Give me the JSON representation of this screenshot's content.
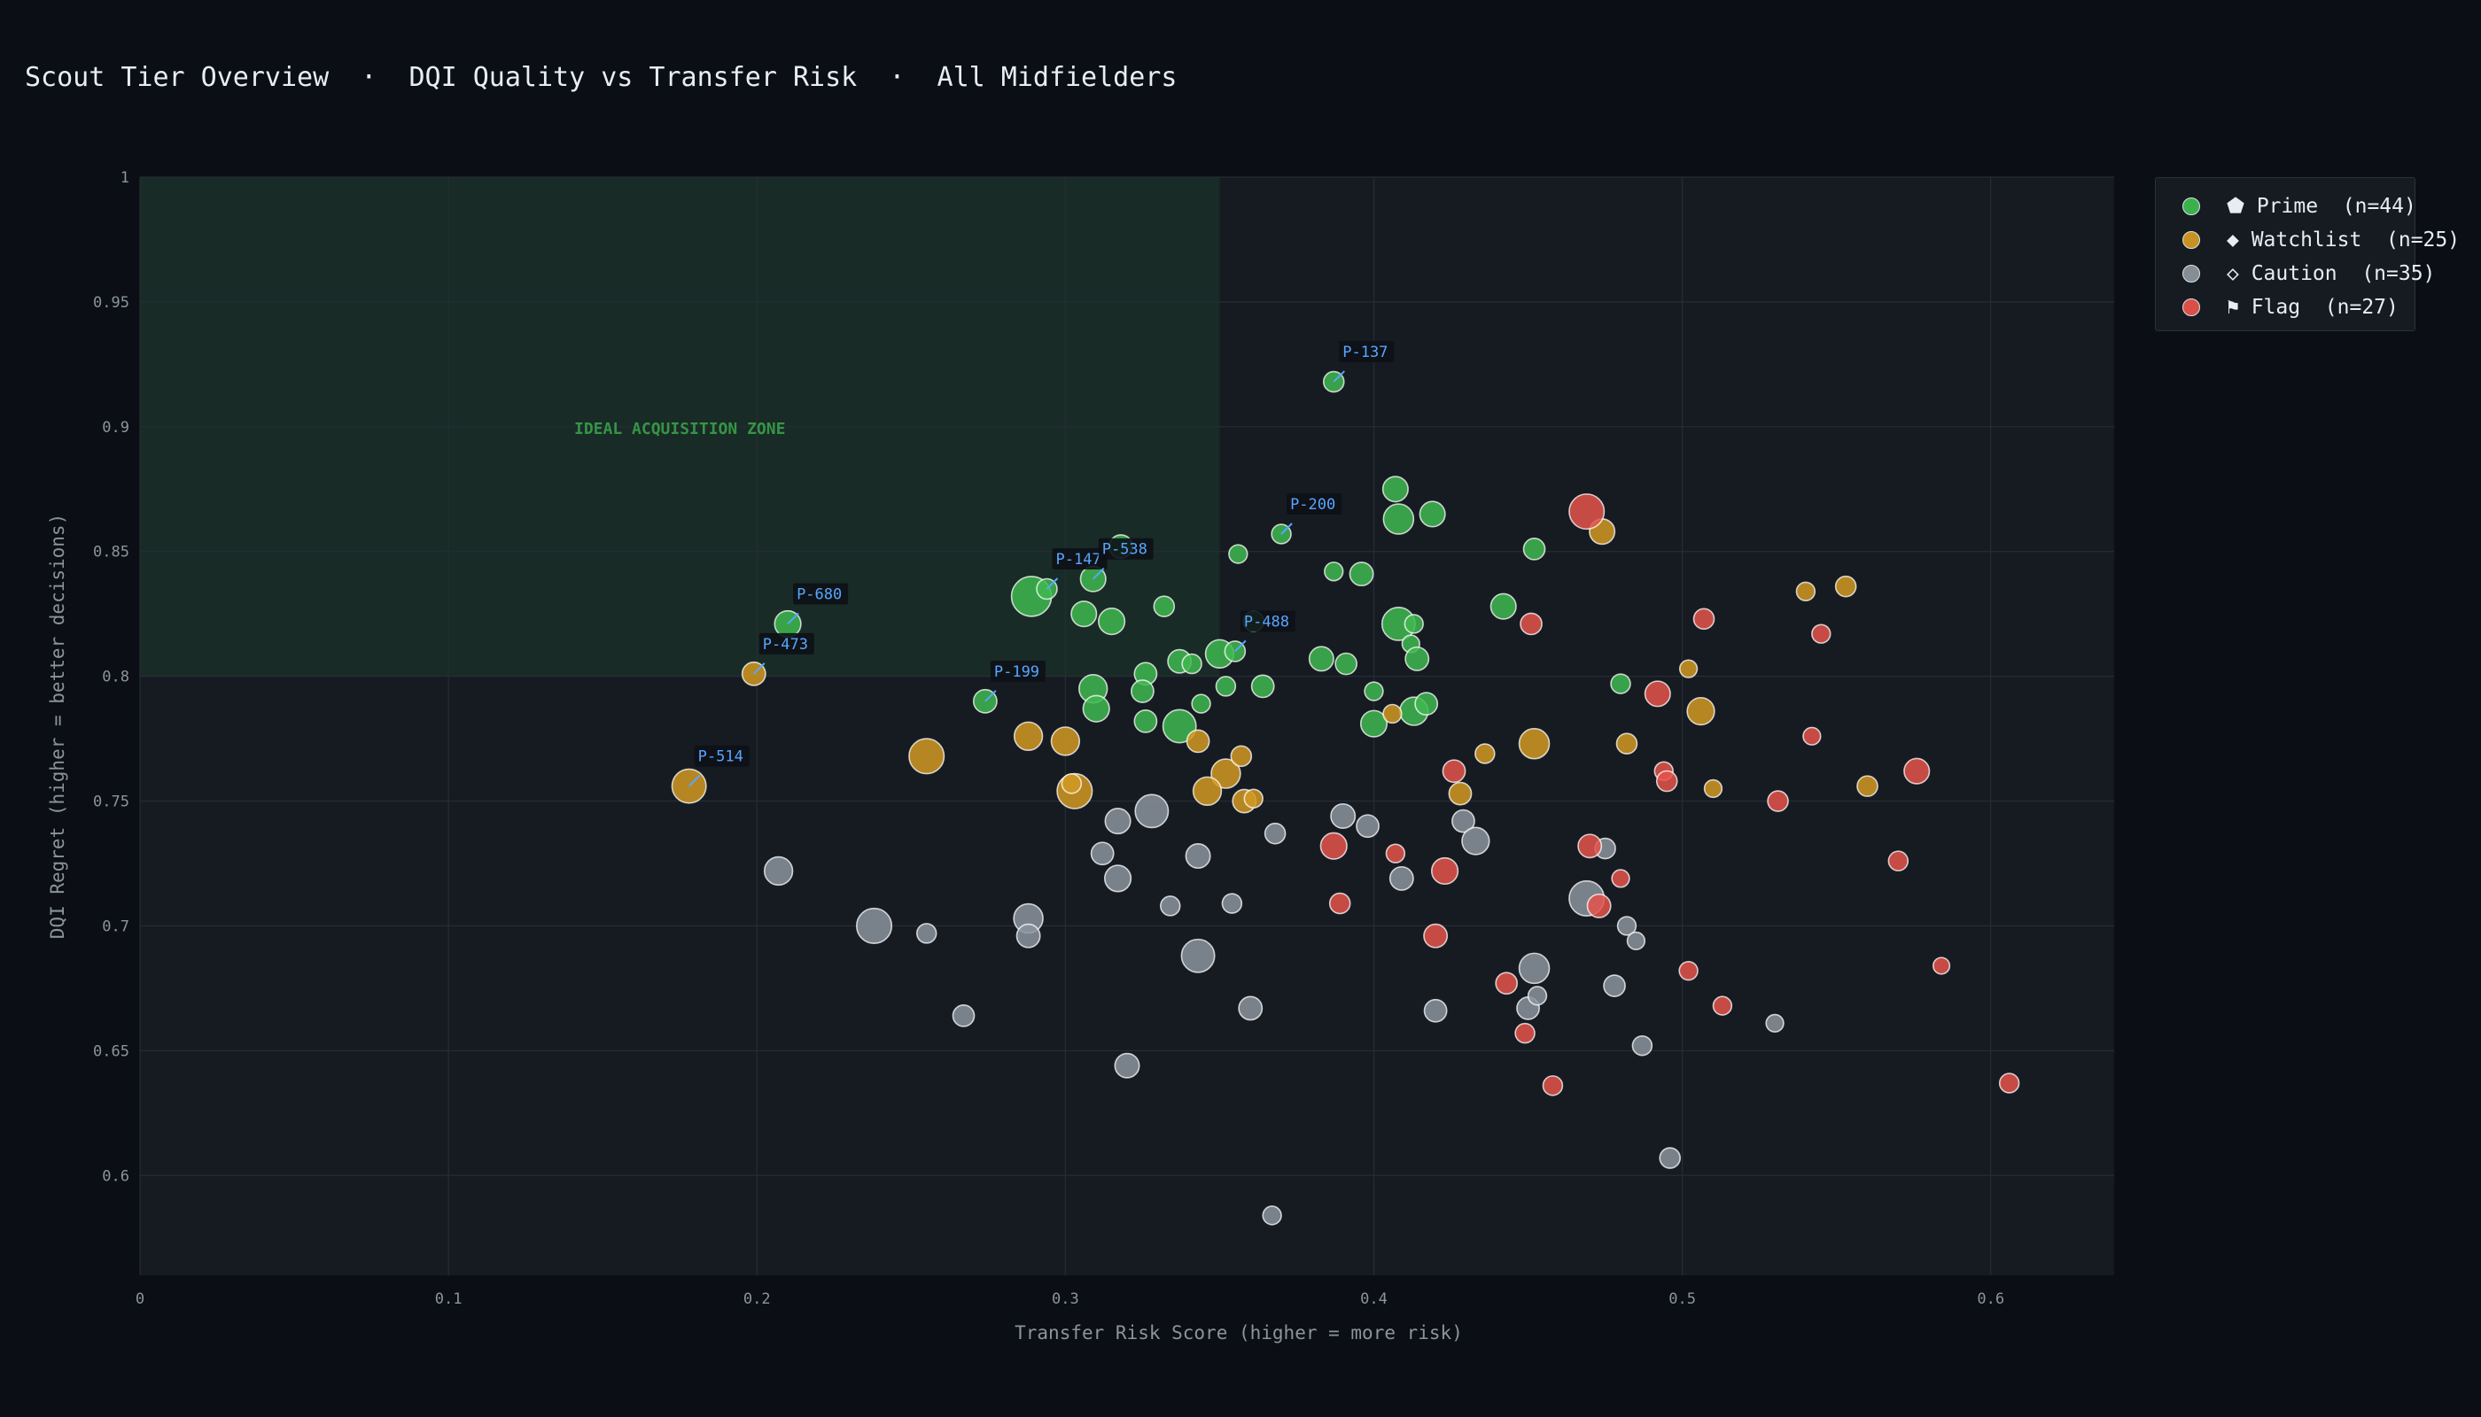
{
  "chart_data": {
    "type": "scatter",
    "title": "Scout Tier Overview  ·  DQI Quality vs Transfer Risk  ·  All Midfielders",
    "xlabel": "Transfer Risk Score  (higher = more risk)",
    "ylabel": "DQI Regret  (higher = better decisions)",
    "xlim": [
      0,
      0.64
    ],
    "ylim": [
      0.56,
      1.0
    ],
    "x_ticks": [
      "0",
      "0.1",
      "0.2",
      "0.3",
      "0.4",
      "0.5",
      "0.6"
    ],
    "y_ticks": [
      "0.6",
      "0.65",
      "0.7",
      "0.75",
      "0.8",
      "0.85",
      "0.9",
      "0.95",
      "1"
    ],
    "grid": true,
    "zone": {
      "label": "IDEAL ACQUISITION ZONE",
      "x": [
        0,
        0.35
      ],
      "y": [
        0.8,
        1.0
      ]
    },
    "legend_position": "outside-right",
    "series": [
      {
        "name": "⬟ Prime  (n=44)",
        "color": "#3fb950",
        "points": [
          [
            0.387,
            0.918,
            1
          ],
          [
            0.407,
            0.875,
            1.5
          ],
          [
            0.408,
            0.863,
            2
          ],
          [
            0.419,
            0.865,
            1.5
          ],
          [
            0.356,
            0.849,
            0.8
          ],
          [
            0.387,
            0.842,
            0.8
          ],
          [
            0.396,
            0.841,
            1.3
          ],
          [
            0.452,
            0.851,
            1.1
          ],
          [
            0.442,
            0.828,
            1.5
          ],
          [
            0.289,
            0.832,
            3
          ],
          [
            0.294,
            0.835,
            1
          ],
          [
            0.309,
            0.839,
            1.5
          ],
          [
            0.318,
            0.852,
            1.3
          ],
          [
            0.306,
            0.825,
            1.5
          ],
          [
            0.315,
            0.822,
            1.6
          ],
          [
            0.332,
            0.828,
            1
          ],
          [
            0.361,
            0.822,
            1
          ],
          [
            0.21,
            0.821,
            1.6
          ],
          [
            0.274,
            0.79,
            1.3
          ],
          [
            0.408,
            0.821,
            2.3
          ],
          [
            0.413,
            0.821,
            0.8
          ],
          [
            0.412,
            0.813,
            0.7
          ],
          [
            0.414,
            0.807,
            1.3
          ],
          [
            0.383,
            0.807,
            1.4
          ],
          [
            0.391,
            0.805,
            1.1
          ],
          [
            0.35,
            0.809,
            1.8
          ],
          [
            0.337,
            0.806,
            1.3
          ],
          [
            0.341,
            0.805,
            0.9
          ],
          [
            0.326,
            0.801,
            1.2
          ],
          [
            0.309,
            0.795,
            1.8
          ],
          [
            0.31,
            0.787,
            1.6
          ],
          [
            0.325,
            0.794,
            1.2
          ],
          [
            0.352,
            0.796,
            0.9
          ],
          [
            0.364,
            0.796,
            1.2
          ],
          [
            0.344,
            0.789,
            0.8
          ],
          [
            0.326,
            0.782,
            1.2
          ],
          [
            0.337,
            0.78,
            2.3
          ],
          [
            0.4,
            0.794,
            0.8
          ],
          [
            0.4,
            0.781,
            1.6
          ],
          [
            0.413,
            0.786,
            1.8
          ],
          [
            0.417,
            0.789,
            1.2
          ],
          [
            0.48,
            0.797,
            0.9
          ],
          [
            0.37,
            0.857,
            0.9
          ],
          [
            0.355,
            0.81,
            1
          ]
        ]
      },
      {
        "name": "◆ Watchlist  (n=25)",
        "color": "#d29922",
        "points": [
          [
            0.474,
            0.858,
            1.5
          ],
          [
            0.54,
            0.834,
            0.8
          ],
          [
            0.553,
            0.836,
            1
          ],
          [
            0.199,
            0.801,
            1.3
          ],
          [
            0.178,
            0.756,
            2.4
          ],
          [
            0.255,
            0.768,
            2.5
          ],
          [
            0.288,
            0.776,
            1.8
          ],
          [
            0.3,
            0.774,
            1.8
          ],
          [
            0.303,
            0.754,
            2.5
          ],
          [
            0.302,
            0.757,
            0.9
          ],
          [
            0.343,
            0.774,
            1.2
          ],
          [
            0.352,
            0.761,
            1.9
          ],
          [
            0.357,
            0.768,
            1
          ],
          [
            0.346,
            0.754,
            1.8
          ],
          [
            0.358,
            0.75,
            1.3
          ],
          [
            0.361,
            0.751,
            0.8
          ],
          [
            0.406,
            0.785,
            0.8
          ],
          [
            0.436,
            0.769,
            0.9
          ],
          [
            0.428,
            0.753,
            1.2
          ],
          [
            0.452,
            0.773,
            2
          ],
          [
            0.482,
            0.773,
            1
          ],
          [
            0.502,
            0.803,
            0.7
          ],
          [
            0.506,
            0.786,
            1.7
          ],
          [
            0.51,
            0.755,
            0.7
          ],
          [
            0.56,
            0.756,
            1
          ]
        ]
      },
      {
        "name": "◇ Caution  (n=35)",
        "color": "#8b949e",
        "points": [
          [
            0.207,
            0.722,
            1.8
          ],
          [
            0.238,
            0.7,
            2.5
          ],
          [
            0.255,
            0.697,
            0.9
          ],
          [
            0.267,
            0.664,
            1.1
          ],
          [
            0.288,
            0.703,
            1.9
          ],
          [
            0.288,
            0.696,
            1.3
          ],
          [
            0.317,
            0.742,
            1.5
          ],
          [
            0.328,
            0.746,
            2.3
          ],
          [
            0.312,
            0.729,
            1.2
          ],
          [
            0.317,
            0.719,
            1.6
          ],
          [
            0.343,
            0.728,
            1.4
          ],
          [
            0.334,
            0.708,
            0.9
          ],
          [
            0.354,
            0.709,
            0.9
          ],
          [
            0.343,
            0.688,
            2.3
          ],
          [
            0.368,
            0.737,
            1
          ],
          [
            0.39,
            0.744,
            1.4
          ],
          [
            0.398,
            0.74,
            1.2
          ],
          [
            0.409,
            0.719,
            1.3
          ],
          [
            0.429,
            0.742,
            1.2
          ],
          [
            0.433,
            0.734,
            1.7
          ],
          [
            0.36,
            0.667,
            1.3
          ],
          [
            0.32,
            0.644,
            1.4
          ],
          [
            0.367,
            0.584,
            0.8
          ],
          [
            0.42,
            0.666,
            1.2
          ],
          [
            0.45,
            0.667,
            1.2
          ],
          [
            0.452,
            0.683,
            2
          ],
          [
            0.453,
            0.672,
            0.8
          ],
          [
            0.469,
            0.711,
            2.5
          ],
          [
            0.475,
            0.731,
            1
          ],
          [
            0.478,
            0.676,
            1.1
          ],
          [
            0.482,
            0.7,
            0.8
          ],
          [
            0.485,
            0.694,
            0.7
          ],
          [
            0.487,
            0.652,
            0.9
          ],
          [
            0.496,
            0.607,
            1
          ],
          [
            0.53,
            0.661,
            0.7
          ]
        ]
      },
      {
        "name": "⚑ Flag  (n=27)",
        "color": "#e5534b",
        "points": [
          [
            0.469,
            0.866,
            2.5
          ],
          [
            0.451,
            0.821,
            1.1
          ],
          [
            0.507,
            0.823,
            1
          ],
          [
            0.545,
            0.817,
            0.8
          ],
          [
            0.492,
            0.793,
            1.5
          ],
          [
            0.542,
            0.776,
            0.7
          ],
          [
            0.426,
            0.762,
            1.2
          ],
          [
            0.494,
            0.762,
            0.8
          ],
          [
            0.495,
            0.758,
            1
          ],
          [
            0.531,
            0.75,
            1
          ],
          [
            0.576,
            0.762,
            1.5
          ],
          [
            0.387,
            0.732,
            1.6
          ],
          [
            0.407,
            0.729,
            0.8
          ],
          [
            0.423,
            0.722,
            1.6
          ],
          [
            0.47,
            0.732,
            1.3
          ],
          [
            0.473,
            0.708,
            1.3
          ],
          [
            0.48,
            0.719,
            0.7
          ],
          [
            0.57,
            0.726,
            0.9
          ],
          [
            0.389,
            0.709,
            1
          ],
          [
            0.42,
            0.696,
            1.3
          ],
          [
            0.443,
            0.677,
            1.1
          ],
          [
            0.449,
            0.657,
            0.9
          ],
          [
            0.458,
            0.636,
            0.9
          ],
          [
            0.502,
            0.682,
            0.8
          ],
          [
            0.513,
            0.668,
            0.8
          ],
          [
            0.584,
            0.684,
            0.6
          ],
          [
            0.606,
            0.637,
            0.9
          ]
        ]
      }
    ],
    "annotations": [
      {
        "label": "P-137",
        "x": 0.387,
        "y": 0.918
      },
      {
        "label": "P-200",
        "x": 0.37,
        "y": 0.857
      },
      {
        "label": "P-147",
        "x": 0.294,
        "y": 0.835
      },
      {
        "label": "P-538",
        "x": 0.309,
        "y": 0.839
      },
      {
        "label": "P-680",
        "x": 0.21,
        "y": 0.821
      },
      {
        "label": "P-473",
        "x": 0.199,
        "y": 0.801
      },
      {
        "label": "P-488",
        "x": 0.355,
        "y": 0.81
      },
      {
        "label": "P-199",
        "x": 0.274,
        "y": 0.79
      },
      {
        "label": "P-514",
        "x": 0.178,
        "y": 0.756
      }
    ]
  },
  "legend": {
    "items": [
      {
        "label": "⬟ Prime  (n=44)",
        "color": "#3fb950"
      },
      {
        "label": "◆ Watchlist  (n=25)",
        "color": "#d29922"
      },
      {
        "label": "◇ Caution  (n=35)",
        "color": "#8b949e"
      },
      {
        "label": "⚑ Flag  (n=27)",
        "color": "#e5534b"
      }
    ]
  }
}
